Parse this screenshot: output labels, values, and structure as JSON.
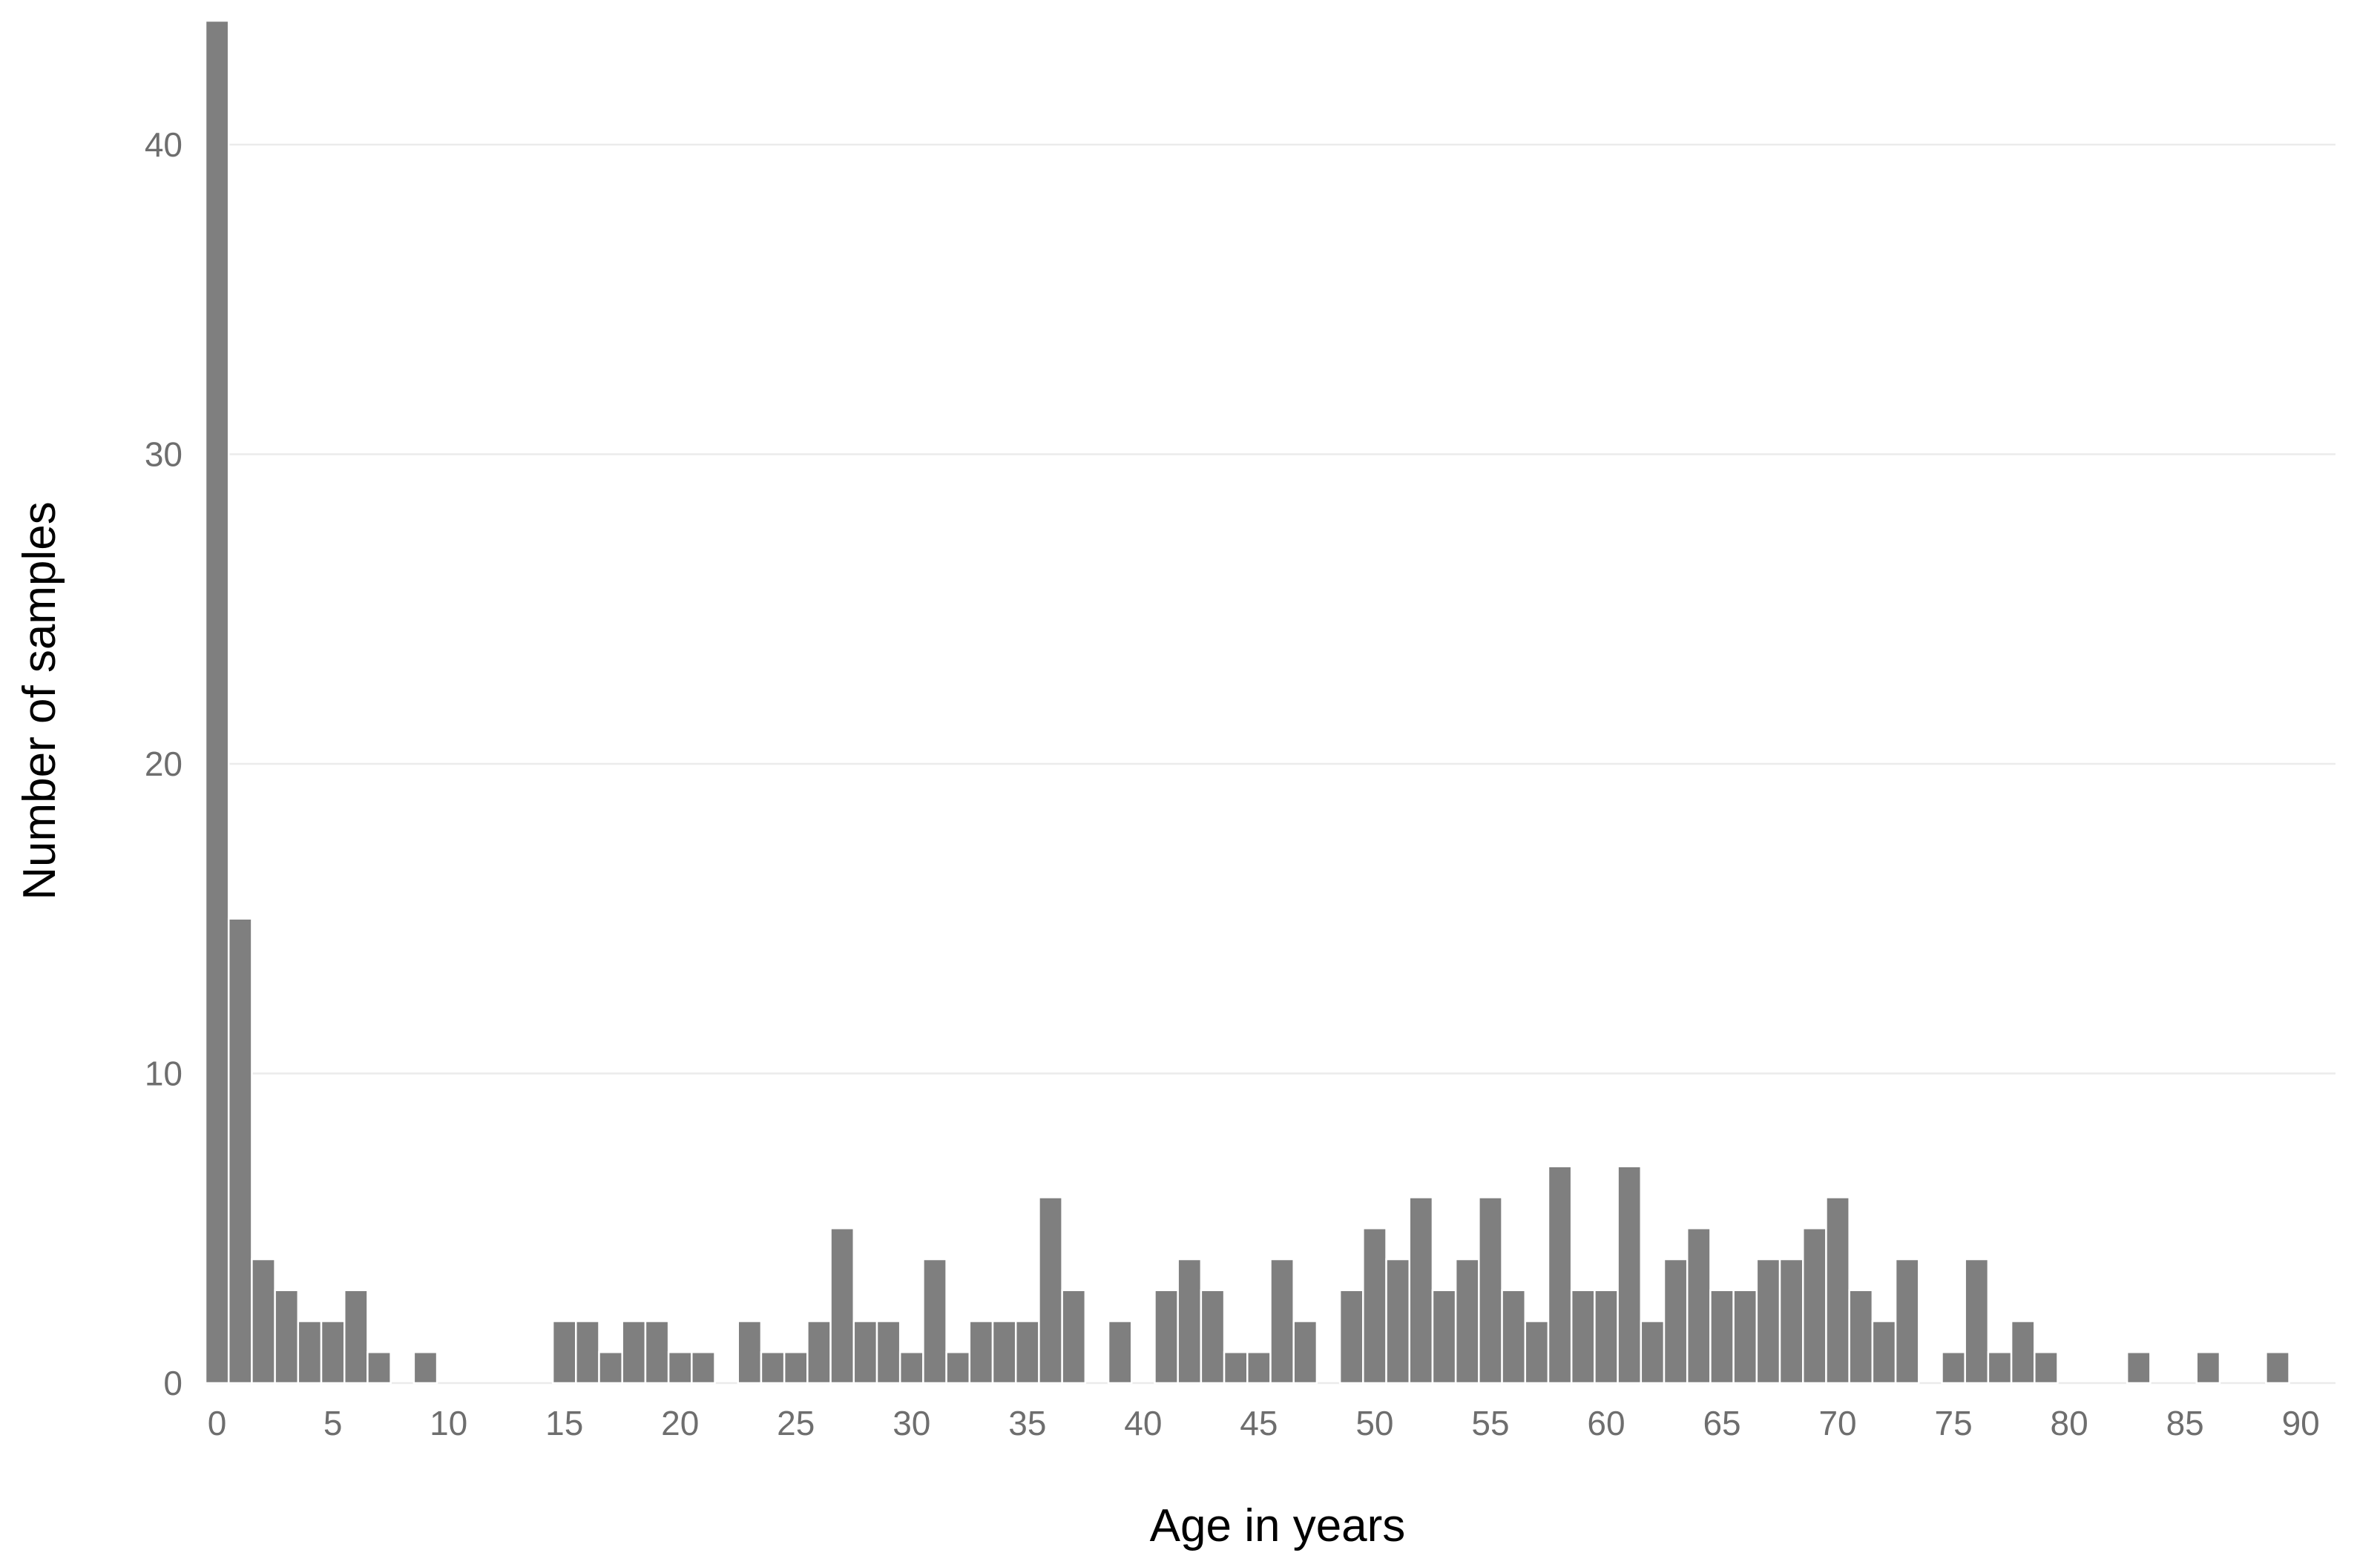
{
  "chart_data": {
    "type": "bar",
    "title": "",
    "xlabel": "Age in years",
    "ylabel": "Number of samples",
    "x": [
      0,
      1,
      2,
      3,
      4,
      5,
      6,
      7,
      8,
      9,
      10,
      11,
      12,
      13,
      14,
      15,
      16,
      17,
      18,
      19,
      20,
      21,
      22,
      23,
      24,
      25,
      26,
      27,
      28,
      29,
      30,
      31,
      32,
      33,
      34,
      35,
      36,
      37,
      38,
      39,
      40,
      41,
      42,
      43,
      44,
      45,
      46,
      47,
      48,
      49,
      50,
      51,
      52,
      53,
      54,
      55,
      56,
      57,
      58,
      59,
      60,
      61,
      62,
      63,
      64,
      65,
      66,
      67,
      68,
      69,
      70,
      71,
      72,
      73,
      74,
      75,
      76,
      77,
      78,
      79,
      80,
      81,
      82,
      83,
      84,
      85,
      86,
      87,
      88,
      89
    ],
    "values": [
      44,
      15,
      4,
      3,
      2,
      2,
      3,
      1,
      0,
      1,
      0,
      0,
      0,
      0,
      0,
      2,
      2,
      1,
      2,
      2,
      1,
      1,
      0,
      2,
      1,
      1,
      2,
      5,
      2,
      2,
      1,
      4,
      1,
      2,
      2,
      2,
      6,
      3,
      0,
      2,
      0,
      3,
      4,
      3,
      1,
      1,
      4,
      2,
      0,
      3,
      5,
      4,
      6,
      3,
      4,
      6,
      3,
      2,
      7,
      3,
      3,
      7,
      2,
      4,
      5,
      3,
      3,
      4,
      4,
      5,
      6,
      3,
      2,
      4,
      0,
      1,
      4,
      1,
      2,
      1,
      0,
      0,
      0,
      1,
      0,
      0,
      1,
      0,
      0,
      1
    ],
    "xlim": [
      -0.5,
      91.5
    ],
    "ylim": [
      0,
      44
    ],
    "xticks": [
      0,
      5,
      10,
      15,
      20,
      25,
      30,
      35,
      40,
      45,
      50,
      55,
      60,
      65,
      70,
      75,
      80,
      85,
      90
    ],
    "yticks": [
      0,
      10,
      20,
      30,
      40
    ],
    "grid": "horizontal major gridlines",
    "legend": "none",
    "colors": {
      "bar": "#7f7f7f",
      "bar_edge": "#ffffff",
      "grid": "#ebebeb",
      "tick_text": "#6e6e6e",
      "axis_title": "#000000",
      "background": "#ffffff"
    }
  }
}
